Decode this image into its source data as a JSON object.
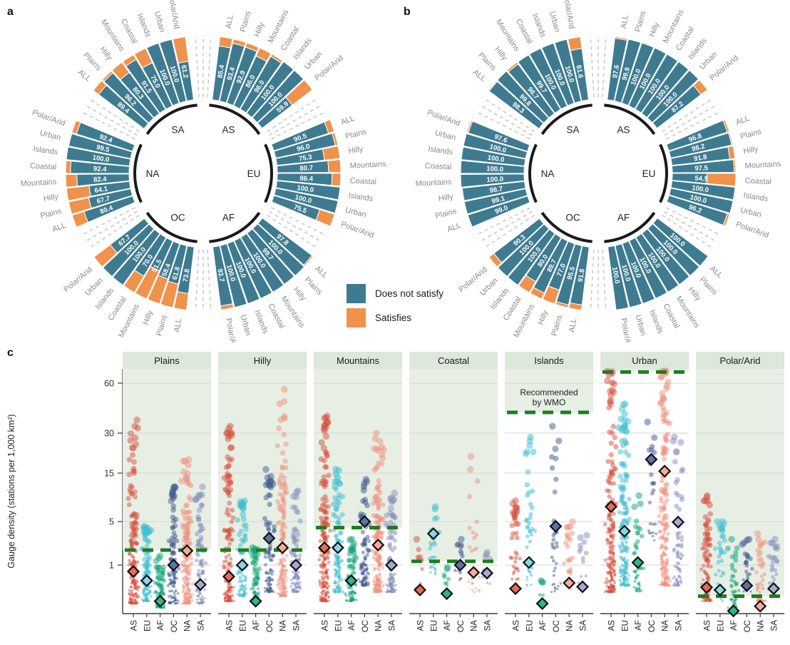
{
  "panels": {
    "a": "a",
    "b": "b",
    "c": "c"
  },
  "legend": {
    "items": [
      {
        "label": "Does not satisfy",
        "key": "does-not-satisfy",
        "color": "#3E7B90"
      },
      {
        "label": "Satisfies",
        "key": "satisfies",
        "color": "#F0924B"
      }
    ]
  },
  "colors": {
    "bar_teal": "#3E7B90",
    "bar_orange": "#F0924B",
    "wmo_green": "#1E7D22",
    "strip_bg": "#DCE8DA",
    "shade_bg": "#E7EFE5",
    "grid_gray": "#D4D4D4",
    "label_gray": "#8A8A8A",
    "axis_dark": "#3C3C3C",
    "arc_black": "#1A1A1A",
    "gap_dash_gray": "#C0C0C0",
    "groups": {
      "AS": "#D5523F",
      "EU": "#3FBDD1",
      "AF": "#14A377",
      "OC": "#41598E",
      "NA": "#F0917D",
      "SA": "#8890BD"
    },
    "diamond_fills": {
      "AS": "#E96A55",
      "EU": "#8AD6E4",
      "AF": "#2BB68C",
      "OC": "#5C72A8",
      "NA": "#F5AB98",
      "SA": "#A3ABD2"
    }
  },
  "chart_data": [
    {
      "id": "a",
      "type": "circular_stacked_bar",
      "units": "percent of bar = Does not satisfy; remainder = Satisfies",
      "categories": [
        "ALL",
        "Plains",
        "Hilly",
        "Mountains",
        "Coastal",
        "Islands",
        "Urban",
        "Polar/Arid"
      ],
      "sectors": [
        {
          "name": "AS",
          "start_deg": 0,
          "does_not_satisfy": [
            85.4,
            93.4,
            92.9,
            86.0,
            96.0,
            100.0,
            100.0,
            59.9
          ]
        },
        {
          "name": "EU",
          "start_deg": 60,
          "does_not_satisfy": [
            90.5,
            96.0,
            75.3,
            80.7,
            86.4,
            100.0,
            100.0,
            75.5
          ]
        },
        {
          "name": "AF",
          "start_deg": 120,
          "does_not_satisfy": [
            97.8,
            100.0,
            99.7,
            100.0,
            100.0,
            100.0,
            100.0,
            93.7
          ]
        },
        {
          "name": "OC",
          "start_deg": 180,
          "does_not_satisfy": [
            73.8,
            61.8,
            58.4,
            51.5,
            70.0,
            100.0,
            100.0,
            67.7
          ]
        },
        {
          "name": "NA",
          "start_deg": 240,
          "does_not_satisfy": [
            80.4,
            67.7,
            64.1,
            82.4,
            92.4,
            100.0,
            99.5,
            92.4
          ]
        },
        {
          "name": "SA",
          "start_deg": 300,
          "does_not_satisfy": [
            89.4,
            96.2,
            80.3,
            91.5,
            75.0,
            100.0,
            100.0,
            61.2
          ]
        }
      ]
    },
    {
      "id": "b",
      "type": "circular_stacked_bar",
      "units": "percent of bar = Does not satisfy; remainder = Satisfies",
      "categories": [
        "ALL",
        "Plains",
        "Hilly",
        "Mountains",
        "Coastal",
        "Islands",
        "Urban",
        "Polar/Arid"
      ],
      "sectors": [
        {
          "name": "AS",
          "start_deg": 0,
          "does_not_satisfy": [
            97.6,
            99.9,
            100.0,
            100.0,
            100.0,
            100.0,
            100.0,
            87.2
          ]
        },
        {
          "name": "EU",
          "start_deg": 60,
          "does_not_satisfy": [
            96.8,
            98.2,
            91.8,
            97.5,
            54.5,
            100.0,
            100.0,
            96.2
          ]
        },
        {
          "name": "AF",
          "start_deg": 120,
          "does_not_satisfy": [
            100.0,
            100.0,
            100.0,
            100.0,
            100.0,
            100.0,
            100.0,
            100.0
          ]
        },
        {
          "name": "OC",
          "start_deg": 180,
          "does_not_satisfy": [
            91.8,
            95.5,
            77.0,
            89.7,
            80.0,
            100.0,
            100.0,
            90.3
          ]
        },
        {
          "name": "NA",
          "start_deg": 240,
          "does_not_satisfy": [
            99.0,
            99.1,
            98.7,
            100.0,
            100.0,
            100.0,
            100.0,
            97.6
          ]
        },
        {
          "name": "SA",
          "start_deg": 300,
          "does_not_satisfy": [
            98.3,
            99.8,
            96.7,
            99.7,
            100.0,
            100.0,
            100.0,
            81.6
          ]
        }
      ]
    },
    {
      "id": "c",
      "type": "strip",
      "ylabel": "Gauge density (stations per 1,000 km²)",
      "yticks": [
        1,
        5,
        15,
        30,
        60
      ],
      "groups": [
        "AS",
        "EU",
        "AF",
        "OC",
        "NA",
        "SA"
      ],
      "wmo_annotation": [
        "Recommended",
        "by WMO"
      ],
      "facets": [
        {
          "name": "Plains",
          "wmo_threshold": 1.74,
          "diamonds": [
            0.75,
            0.5,
            0.2,
            1.0,
            1.7,
            0.42
          ],
          "counts": [
            200,
            120,
            100,
            110,
            200,
            100
          ],
          "mins": [
            0.18,
            0.2,
            0.15,
            0.18,
            0.18,
            0.18
          ],
          "maxs": [
            36,
            4.2,
            1.4,
            11,
            19,
            11
          ]
        },
        {
          "name": "Hilly",
          "wmo_threshold": 1.74,
          "diamonds": [
            0.6,
            1.0,
            0.2,
            2.7,
            1.9,
            1.0
          ],
          "counts": [
            180,
            100,
            90,
            100,
            180,
            110
          ],
          "mins": [
            0.2,
            0.25,
            0.2,
            0.3,
            0.25,
            0.3
          ],
          "maxs": [
            33,
            8,
            1.9,
            16,
            55,
            10
          ]
        },
        {
          "name": "Mountains",
          "wmo_threshold": 4.0,
          "diamonds": [
            1.9,
            1.9,
            0.5,
            5.0,
            2.1,
            1.0
          ],
          "counts": [
            220,
            120,
            90,
            110,
            200,
            120
          ],
          "mins": [
            0.2,
            0.3,
            0.2,
            0.4,
            0.3,
            0.3
          ],
          "maxs": [
            38,
            16,
            2.6,
            13,
            30,
            9.5
          ]
        },
        {
          "name": "Coastal",
          "wmo_threshold": 1.15,
          "diamonds": [
            0.33,
            3.2,
            0.28,
            1.0,
            0.72,
            0.7
          ],
          "counts": [
            12,
            30,
            8,
            14,
            25,
            12
          ],
          "mins": [
            0.35,
            0.6,
            0.3,
            0.5,
            0.3,
            0.4
          ],
          "maxs": [
            2.6,
            7,
            0.9,
            2.6,
            20,
            1.6
          ]
        },
        {
          "name": "Islands",
          "wmo_threshold": 40,
          "diamonds": [
            0.35,
            1.1,
            0.18,
            4.2,
            0.45,
            0.38
          ],
          "annotated": true,
          "counts": [
            40,
            45,
            6,
            35,
            30,
            12
          ],
          "mins": [
            0.3,
            0.4,
            0.2,
            0.3,
            0.3,
            0.4
          ],
          "maxs": [
            8,
            28,
            0.5,
            33,
            5,
            3
          ]
        },
        {
          "name": "Urban",
          "wmo_threshold": 70,
          "diamonds": [
            7,
            3.5,
            1.1,
            19,
            15.5,
            4.9
          ],
          "counts": [
            210,
            200,
            50,
            25,
            210,
            80
          ],
          "mins": [
            0.3,
            0.4,
            0.3,
            2.5,
            0.4,
            0.4
          ],
          "maxs": [
            75,
            45,
            9,
            35,
            75,
            28
          ]
        },
        {
          "name": "Polar/Arid",
          "wmo_threshold": 0.25,
          "diamonds": [
            0.37,
            0.33,
            0.13,
            0.4,
            0.16,
            0.35
          ],
          "counts": [
            130,
            35,
            50,
            28,
            55,
            38
          ],
          "mins": [
            0.2,
            0.2,
            0.15,
            0.3,
            0.2,
            0.25
          ],
          "maxs": [
            9,
            5,
            2.6,
            2.6,
            3.2,
            2.6
          ]
        }
      ]
    }
  ]
}
